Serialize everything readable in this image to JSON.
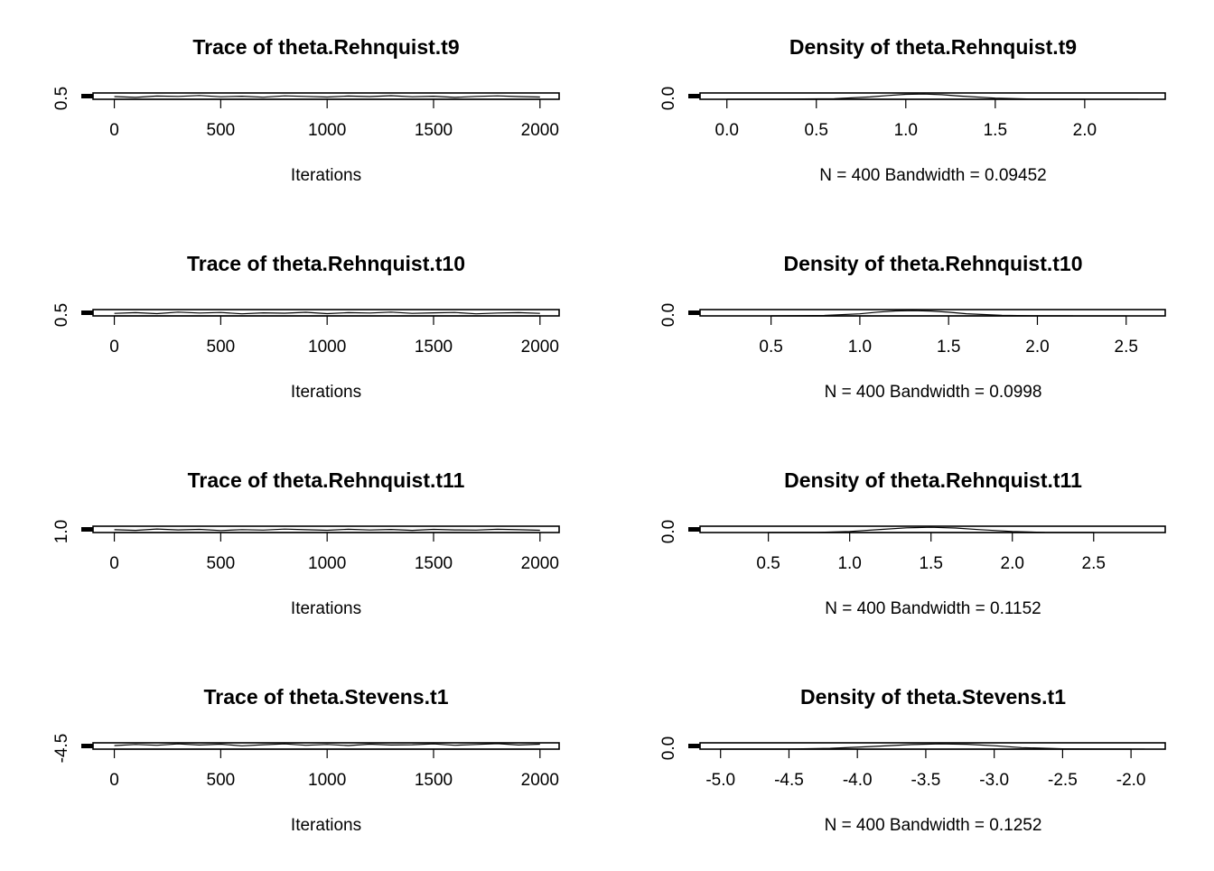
{
  "chart_data": [
    {
      "type": "line",
      "title": "Trace of theta.Rehnquist.t9",
      "xlabel": "Iterations",
      "xlim": [
        -100,
        2090
      ],
      "xticks": [
        "0",
        "500",
        "1000",
        "1500",
        "2000"
      ],
      "ylim": [
        0.35,
        0.68
      ],
      "yticks": [
        "0.5"
      ],
      "series": [
        {
          "x": [
            0,
            100,
            200,
            300,
            400,
            500,
            600,
            700,
            800,
            900,
            1000,
            1100,
            1200,
            1300,
            1400,
            1500,
            1600,
            1700,
            1800,
            1900,
            2000
          ],
          "y": [
            0.49,
            0.45,
            0.52,
            0.5,
            0.55,
            0.48,
            0.51,
            0.46,
            0.53,
            0.5,
            0.47,
            0.52,
            0.49,
            0.54,
            0.48,
            0.51,
            0.45,
            0.5,
            0.53,
            0.49,
            0.47
          ]
        }
      ]
    },
    {
      "type": "line",
      "title": "Density of theta.Rehnquist.t9",
      "xlabel": "N = 400   Bandwidth = 0.09452",
      "xlim": [
        -0.15,
        2.45
      ],
      "xticks": [
        "0.0",
        "0.5",
        "1.0",
        "1.5",
        "2.0"
      ],
      "ylim": [
        0,
        1.2
      ],
      "yticks": [
        "0.0"
      ],
      "series": [
        {
          "x": [
            0.0,
            0.3,
            0.6,
            0.8,
            0.9,
            1.0,
            1.1,
            1.2,
            1.3,
            1.5,
            1.7,
            2.0,
            2.3
          ],
          "y": [
            0.0,
            0.01,
            0.12,
            0.45,
            0.72,
            0.95,
            1.0,
            0.88,
            0.62,
            0.22,
            0.05,
            0.01,
            0.0
          ]
        }
      ]
    },
    {
      "type": "line",
      "title": "Trace of theta.Rehnquist.t10",
      "xlabel": "Iterations",
      "xlim": [
        -100,
        2090
      ],
      "xticks": [
        "0",
        "500",
        "1000",
        "1500",
        "2000"
      ],
      "ylim": [
        0.35,
        0.68
      ],
      "yticks": [
        "0.5"
      ],
      "series": [
        {
          "x": [
            0,
            100,
            200,
            300,
            400,
            500,
            600,
            700,
            800,
            900,
            1000,
            1100,
            1200,
            1300,
            1400,
            1500,
            1600,
            1700,
            1800,
            1900,
            2000
          ],
          "y": [
            0.48,
            0.52,
            0.47,
            0.55,
            0.5,
            0.53,
            0.46,
            0.51,
            0.49,
            0.54,
            0.47,
            0.52,
            0.5,
            0.55,
            0.48,
            0.51,
            0.53,
            0.46,
            0.5,
            0.52,
            0.48
          ]
        }
      ]
    },
    {
      "type": "line",
      "title": "Density of theta.Rehnquist.t10",
      "xlabel": "N = 400   Bandwidth = 0.0998",
      "xlim": [
        0.1,
        2.72
      ],
      "xticks": [
        "0.5",
        "1.0",
        "1.5",
        "2.0",
        "2.5"
      ],
      "ylim": [
        0,
        1.2
      ],
      "yticks": [
        "0.0"
      ],
      "series": [
        {
          "x": [
            0.5,
            0.8,
            1.0,
            1.1,
            1.2,
            1.3,
            1.4,
            1.5,
            1.6,
            1.8,
            2.0,
            2.2
          ],
          "y": [
            0.0,
            0.08,
            0.4,
            0.72,
            0.95,
            1.0,
            0.92,
            0.7,
            0.42,
            0.1,
            0.01,
            0.0
          ]
        }
      ]
    },
    {
      "type": "line",
      "title": "Trace of theta.Rehnquist.t11",
      "xlabel": "Iterations",
      "xlim": [
        -100,
        2090
      ],
      "xticks": [
        "0",
        "500",
        "1000",
        "1500",
        "2000"
      ],
      "ylim": [
        0.8,
        1.3
      ],
      "yticks": [
        "1.0"
      ],
      "series": [
        {
          "x": [
            0,
            100,
            200,
            300,
            400,
            500,
            600,
            700,
            800,
            900,
            1000,
            1100,
            1200,
            1300,
            1400,
            1500,
            1600,
            1700,
            1800,
            1900,
            2000
          ],
          "y": [
            1.02,
            0.97,
            1.08,
            1.01,
            1.05,
            0.96,
            1.03,
            0.99,
            1.07,
            1.02,
            0.98,
            1.06,
            1.0,
            1.04,
            0.97,
            1.05,
            1.01,
            0.99,
            1.06,
            1.02,
            0.98
          ]
        }
      ]
    },
    {
      "type": "line",
      "title": "Density of theta.Rehnquist.t11",
      "xlabel": "N = 400   Bandwidth = 0.1152",
      "xlim": [
        0.08,
        2.94
      ],
      "xticks": [
        "0.5",
        "1.0",
        "1.5",
        "2.0",
        "2.5"
      ],
      "ylim": [
        0,
        1.2
      ],
      "yticks": [
        "0.0"
      ],
      "series": [
        {
          "x": [
            0.5,
            0.8,
            1.0,
            1.2,
            1.35,
            1.5,
            1.65,
            1.8,
            2.0,
            2.2,
            2.5
          ],
          "y": [
            0.0,
            0.04,
            0.2,
            0.6,
            0.9,
            1.0,
            0.85,
            0.55,
            0.2,
            0.04,
            0.0
          ]
        }
      ]
    },
    {
      "type": "line",
      "title": "Trace of theta.Stevens.t1",
      "xlabel": "Iterations",
      "xlim": [
        -100,
        2090
      ],
      "xticks": [
        "0",
        "500",
        "1000",
        "1500",
        "2000"
      ],
      "ylim": [
        -4.9,
        -2.6
      ],
      "yticks": [
        "-4.5"
      ],
      "series": [
        {
          "x": [
            0,
            100,
            200,
            300,
            400,
            500,
            600,
            700,
            800,
            900,
            1000,
            1100,
            1200,
            1300,
            1400,
            1500,
            1600,
            1700,
            1800,
            1900,
            2000
          ],
          "y": [
            -3.6,
            -3.2,
            -3.5,
            -3.0,
            -3.4,
            -3.1,
            -3.7,
            -3.3,
            -3.0,
            -3.5,
            -3.2,
            -3.6,
            -3.1,
            -3.4,
            -3.3,
            -3.0,
            -3.5,
            -3.2,
            -2.9,
            -3.4,
            -3.1
          ]
        }
      ]
    },
    {
      "type": "line",
      "title": "Density of theta.Stevens.t1",
      "xlabel": "N = 400   Bandwidth = 0.1252",
      "xlim": [
        -5.15,
        -1.75
      ],
      "xticks": [
        "-5.0",
        "-4.5",
        "-4.0",
        "-3.5",
        "-3.0",
        "-2.5",
        "-2.0"
      ],
      "ylim": [
        0,
        1.2
      ],
      "yticks": [
        "0.0"
      ],
      "series": [
        {
          "x": [
            -5.0,
            -4.5,
            -4.2,
            -3.9,
            -3.6,
            -3.4,
            -3.2,
            -3.0,
            -2.8,
            -2.5,
            -2.2,
            -1.9
          ],
          "y": [
            0.0,
            0.02,
            0.15,
            0.5,
            0.88,
            1.0,
            0.92,
            0.65,
            0.3,
            0.06,
            0.01,
            0.0
          ]
        }
      ]
    }
  ]
}
